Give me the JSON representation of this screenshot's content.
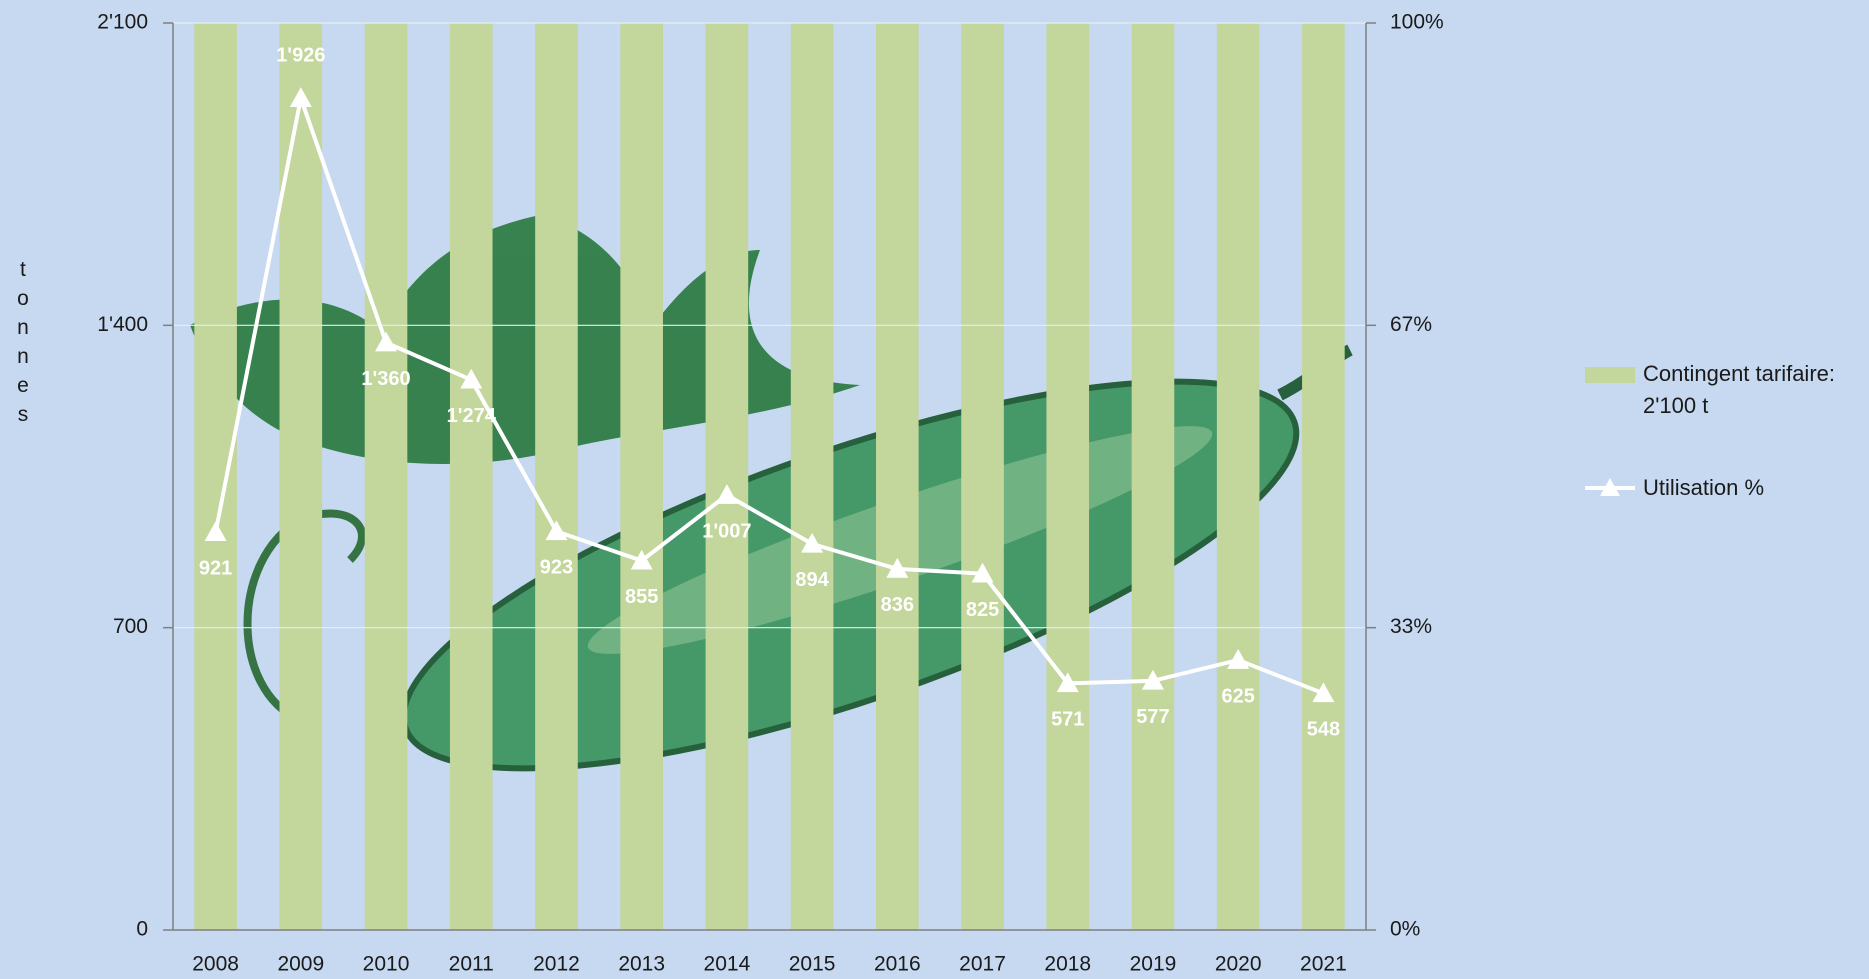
{
  "chart_data": {
    "type": "bar",
    "ylabel": "tonnes",
    "categories": [
      "2008",
      "2009",
      "2010",
      "2011",
      "2012",
      "2013",
      "2014",
      "2015",
      "2016",
      "2017",
      "2018",
      "2019",
      "2020",
      "2021"
    ],
    "series": [
      {
        "name": "Contingent tarifaire: 2'100 t",
        "type": "bar",
        "color": "#c3d69b",
        "values": [
          2100,
          2100,
          2100,
          2100,
          2100,
          2100,
          2100,
          2100,
          2100,
          2100,
          2100,
          2100,
          2100,
          2100
        ]
      },
      {
        "name": "Utilisation %",
        "type": "line",
        "color": "#ffffff",
        "values": [
          921,
          1926,
          1360,
          1274,
          923,
          855,
          1007,
          894,
          836,
          825,
          571,
          577,
          625,
          548
        ],
        "value_labels": [
          "921",
          "1'926",
          "1'360",
          "1'274",
          "923",
          "855",
          "1'007",
          "894",
          "836",
          "825",
          "571",
          "577",
          "625",
          "548"
        ]
      }
    ],
    "ylim": [
      0,
      2100
    ],
    "yticks": [
      0,
      700,
      {
        "value": 1400,
        "label": "1'400"
      },
      {
        "value": 2100,
        "label": "2'100"
      }
    ],
    "y2lim": [
      0,
      100
    ],
    "y2ticks": [
      {
        "value": 0,
        "label": "0%"
      },
      {
        "value": 33.333,
        "label": "33%"
      },
      {
        "value": 66.667,
        "label": "67%"
      },
      {
        "value": 100,
        "label": "100%"
      }
    ],
    "grid": true,
    "legend": "right"
  }
}
